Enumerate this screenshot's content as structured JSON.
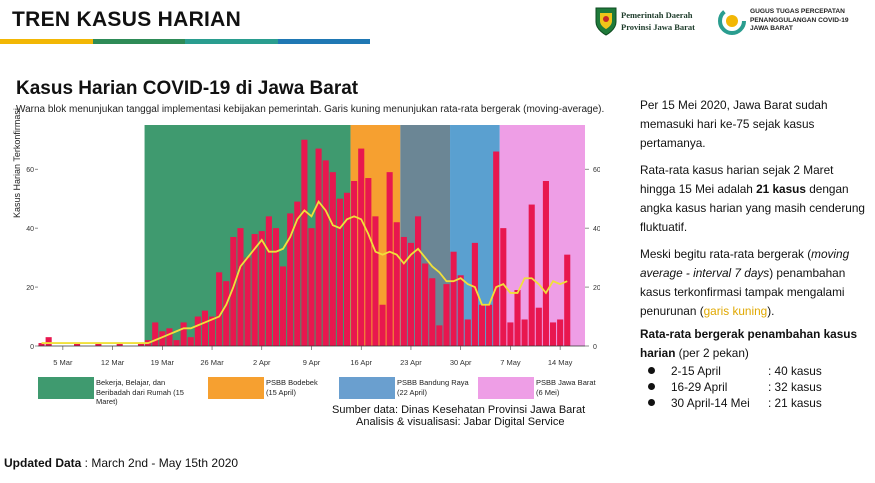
{
  "header": {
    "title": "TREN KASUS HARIAN",
    "rule_colors": [
      "#f2b705",
      "#2e8b57",
      "#2a9d8f",
      "#1f78b4"
    ],
    "logo1_lines": [
      "Pemerintah Daerah",
      "Provinsi Jawa Barat"
    ],
    "logo2_lines": [
      "GUGUS TUGAS PERCEPATAN",
      "PENANGGULANGAN COVID-19",
      "JAWA BARAT"
    ]
  },
  "chart_title": "Kasus Harian COVID-19 di Jawa Barat",
  "chart_subtitle": "Warna blok menunjukan tanggal implementasi kebijakan pemerintah. Garis kuning menunjukan rata-rata bergerak (moving-average).",
  "chart_data": {
    "type": "bar",
    "ylabel": "Kasus Harian Terkonfirmasi",
    "ylim": [
      0,
      75
    ],
    "yticks": [
      0,
      20,
      40,
      60
    ],
    "grid": false,
    "x_tick_labels": [
      "5 Mar",
      "12 Mar",
      "19 Mar",
      "26 Mar",
      "2 Apr",
      "9 Apr",
      "16 Apr",
      "23 Apr",
      "30 Apr",
      "7 May",
      "14 May"
    ],
    "x_tick_days": [
      3,
      10,
      17,
      24,
      31,
      38,
      45,
      52,
      59,
      66,
      73
    ],
    "dates_start": "2 Mar",
    "dates_end": "15 May",
    "series": [
      {
        "name": "Kasus harian",
        "color": "#e8174f",
        "values": [
          1,
          3,
          0,
          0,
          0,
          1,
          0,
          0,
          1,
          0,
          0,
          1,
          0,
          0,
          1,
          2,
          8,
          5,
          6,
          2,
          8,
          3,
          10,
          12,
          10,
          25,
          22,
          37,
          40,
          30,
          38,
          39,
          44,
          40,
          27,
          45,
          49,
          70,
          40,
          67,
          63,
          59,
          50,
          52,
          56,
          67,
          57,
          44,
          14,
          59,
          42,
          37,
          35,
          44,
          28,
          23,
          7,
          21,
          32,
          24,
          9,
          35,
          14,
          14,
          66,
          40,
          8,
          19,
          9,
          48,
          13,
          56,
          8,
          9,
          31
        ]
      },
      {
        "name": "Rata-rata bergerak",
        "color": "#f0e03a",
        "values": [
          1,
          1,
          1,
          1,
          1,
          1,
          1,
          1,
          1,
          1,
          1,
          1,
          1,
          1,
          1,
          1,
          2,
          3,
          4,
          5,
          6,
          6,
          7,
          8,
          9,
          10,
          14,
          20,
          27,
          30,
          33,
          36,
          32,
          32,
          33,
          37,
          43,
          46,
          44,
          49,
          46,
          41,
          40,
          43,
          44,
          43,
          38,
          32,
          31,
          32,
          31,
          28,
          31,
          33,
          30,
          27,
          25,
          22,
          22,
          23,
          21,
          20,
          14,
          14,
          20,
          21,
          18,
          18,
          23,
          23,
          21,
          18,
          22,
          21,
          22
        ]
      }
    ],
    "policy_blocks": [
      {
        "label": "Bekerja, Belajar, dan Beribadah dari Rumah (15 Maret)",
        "start_day": 15,
        "end_day": 44,
        "color": "#3f9a6f"
      },
      {
        "label": "PSBB Bodebek (15 April)",
        "start_day": 44,
        "end_day": 51,
        "color": "#f6a030"
      },
      {
        "label": "PSBB Bandung Raya (22 April)",
        "start_day": 51,
        "end_day": 58,
        "color": "#6b8695"
      },
      {
        "label": "",
        "start_day": 58,
        "end_day": 65,
        "color": "#5aa0d0"
      },
      {
        "label": "PSBB Jawa Barat (6 Mei)",
        "start_day": 65,
        "end_day": 77,
        "color": "#ee9ee6"
      }
    ],
    "legend": [
      {
        "label": "Bekerja, Belajar, dan Beribadah dari Rumah (15 Maret)",
        "color": "#3f9a6f"
      },
      {
        "label": "PSBB Bodebek (15 April)",
        "color": "#f6a030"
      },
      {
        "label": "PSBB Bandung Raya (22 April)",
        "color": "#6a9fcf"
      },
      {
        "label": "PSBB Jawa Barat (6 Mei)",
        "color": "#ee9ee6"
      }
    ]
  },
  "source": {
    "line1": "Sumber data: Dinas Kesehatan Provinsi Jawa Barat",
    "line2": "Analisis & visualisasi: Jabar Digital Service"
  },
  "updated": {
    "label": "Updated Data",
    "text": " : March 2nd - May 15th 2020"
  },
  "side_panel": {
    "p1": "Per 15 Mei 2020, Jawa Barat sudah memasuki hari ke-75 sejak kasus pertamanya.",
    "p2_a": "Rata-rata kasus harian sejak 2 Maret hingga 15 Mei adalah ",
    "p2_bold": "21 kasus",
    "p2_b": " dengan angka kasus harian yang masih cenderung fluktuatif.",
    "p3_a": "Meski begitu rata-rata bergerak (",
    "p3_em": "moving average - interval 7 days",
    "p3_b": ")  penambahan kasus terkonfirmasi tampak mengalami penurunan (",
    "p3_hl": "garis kuning",
    "p3_c": ").",
    "avg_title_bold": "Rata-rata bergerak penambahan kasus harian",
    "avg_title_rest": " (per 2 pekan)",
    "avg_rows": [
      {
        "period": "2-15 April",
        "value": ": 40 kasus"
      },
      {
        "period": "16-29 April",
        "value": ": 32 kasus"
      },
      {
        "period": "30 April-14 Mei",
        "value": ": 21 kasus"
      }
    ]
  }
}
